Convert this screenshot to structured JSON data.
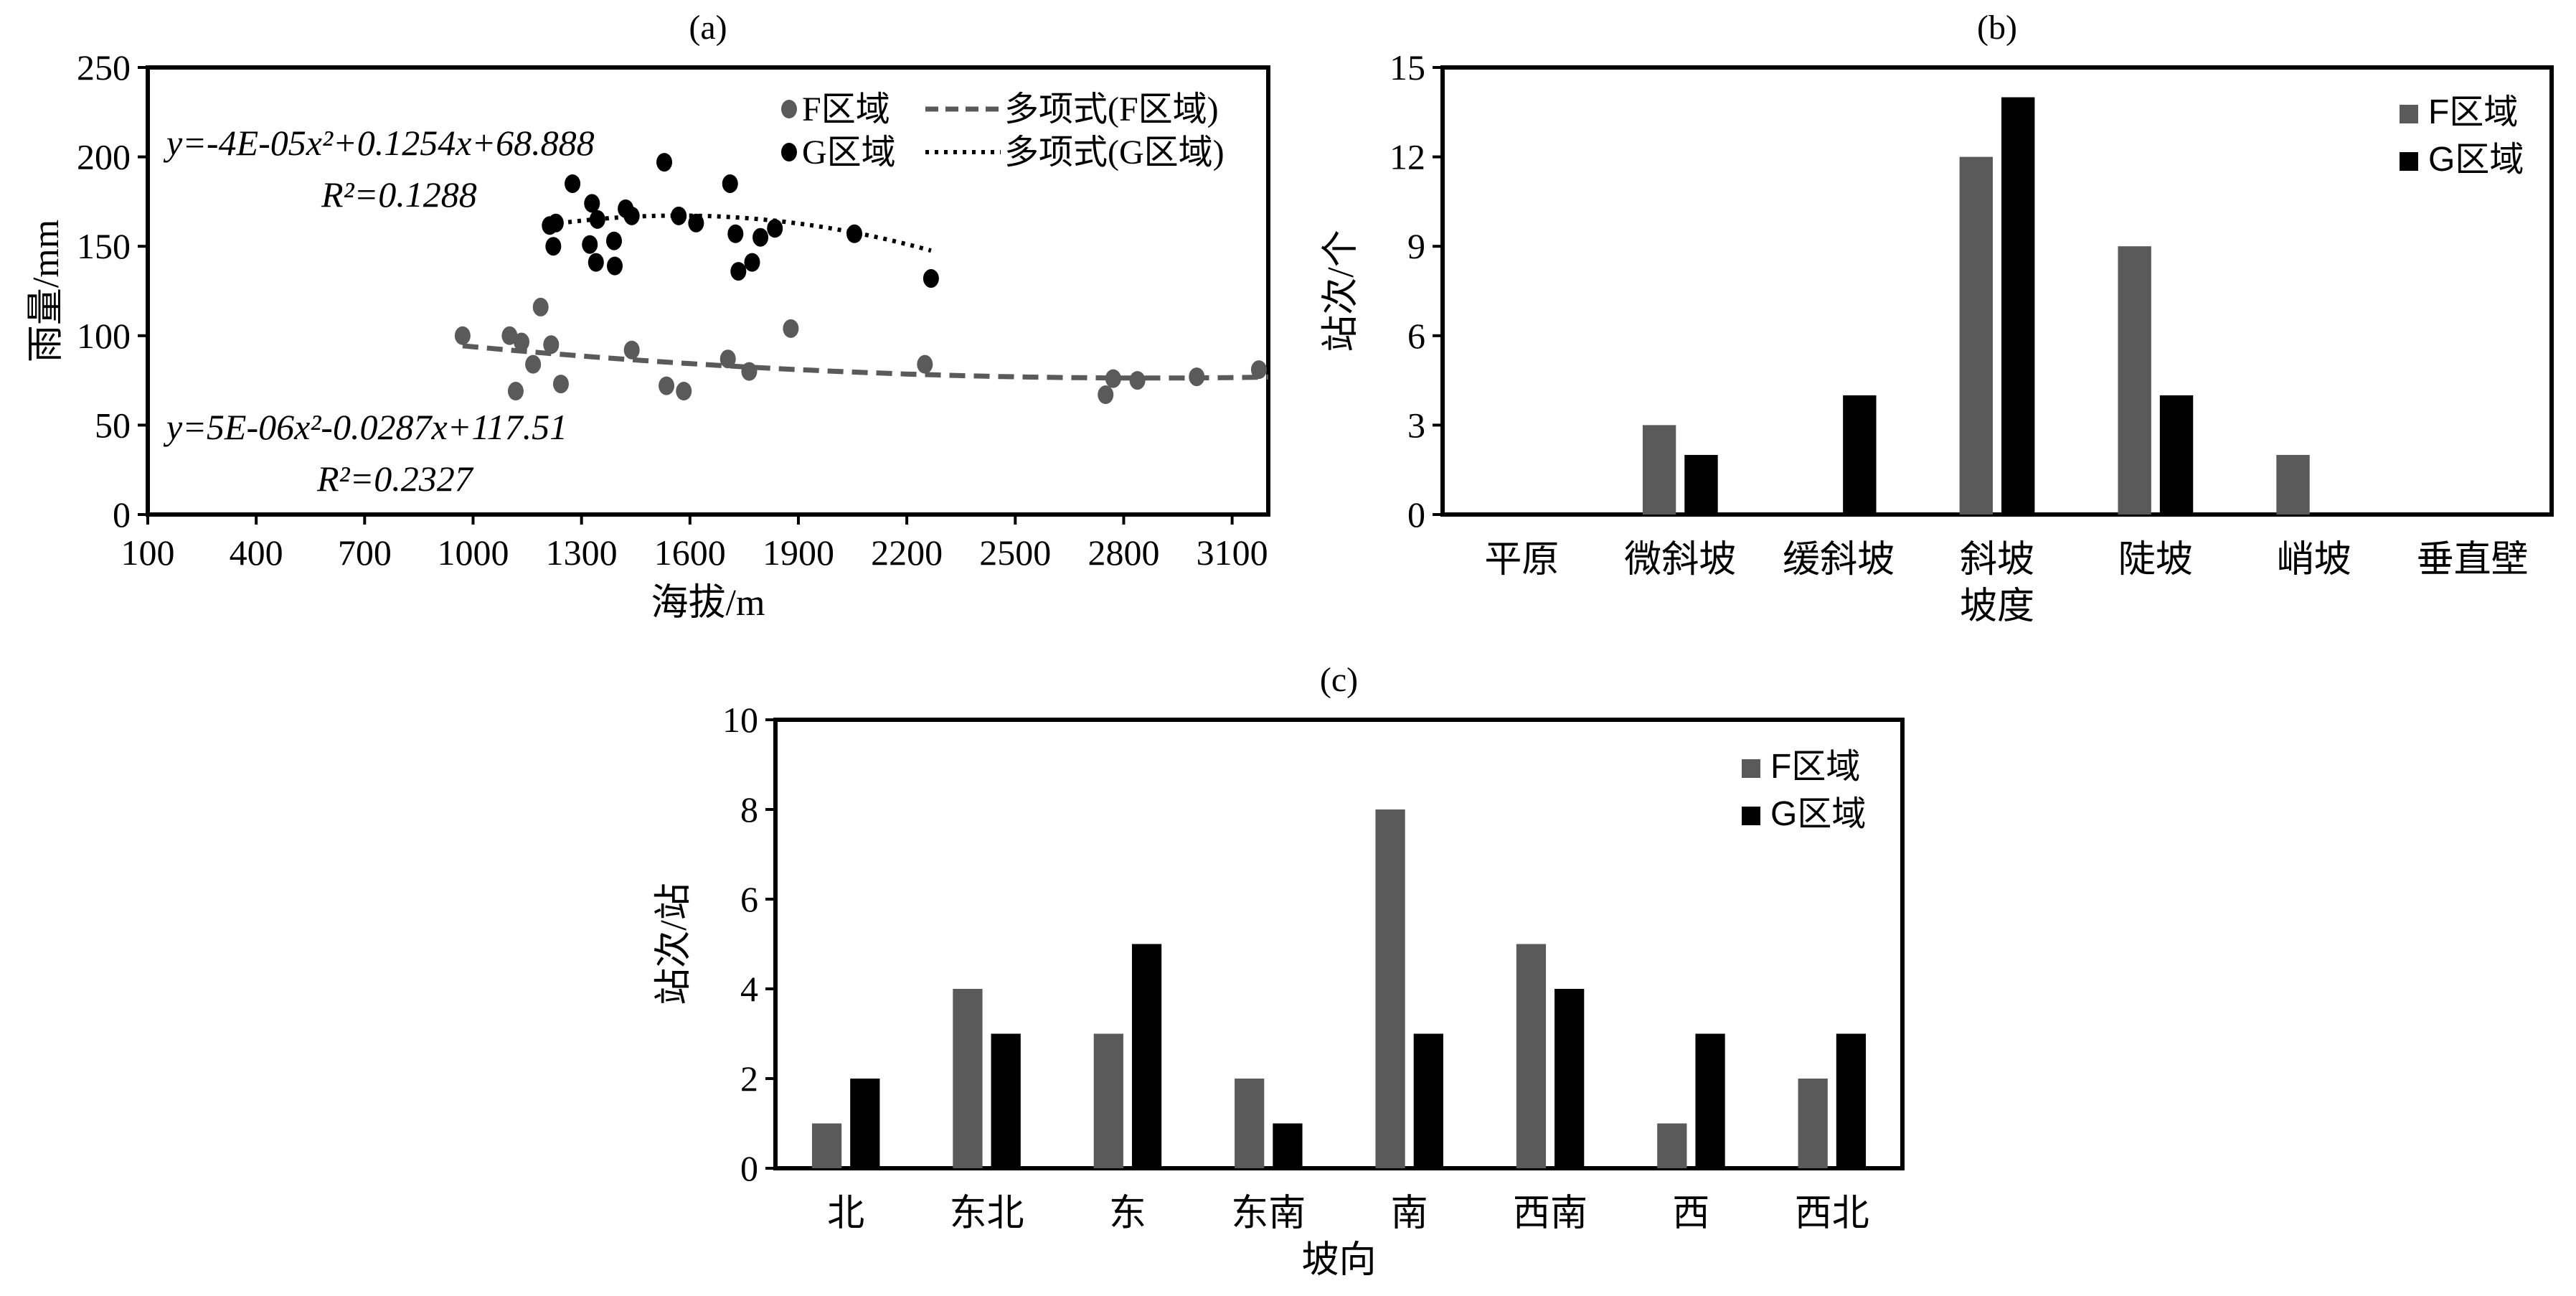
{
  "colors": {
    "F": "#5a5a5a",
    "G": "#000000"
  },
  "chart_data": [
    {
      "type": "scatter",
      "title": "(a)",
      "xlabel": "海拔/m",
      "ylabel": "雨量/mm",
      "xlim": [
        100,
        3200
      ],
      "ylim": [
        0,
        250
      ],
      "xticks": [
        100,
        400,
        700,
        1000,
        1300,
        1600,
        1900,
        2200,
        2500,
        2800,
        3100
      ],
      "yticks": [
        0,
        50,
        100,
        150,
        200,
        250
      ],
      "legend": {
        "position": "top-right",
        "entries": [
          "F区域",
          "G区域",
          "多项式(F区域)",
          "多项式(G区域)"
        ]
      },
      "series": [
        {
          "name": "F区域",
          "x": [
            971,
            1101,
            1134,
            1187,
            1216,
            1166,
            1118,
            1243,
            1439,
            1535,
            1583,
            1705,
            1764,
            1879,
            2250,
            2750,
            2771,
            2838,
            3002,
            3174
          ],
          "y": [
            100,
            100,
            96.5,
            116,
            95,
            84,
            69,
            73,
            92,
            72,
            69,
            87,
            80,
            104,
            84,
            67,
            76,
            75,
            77,
            81
          ],
          "fit": {
            "a": 5e-06,
            "b": -0.0287,
            "c": 117.51,
            "xrange": [
              971,
              3200
            ],
            "equation": "y=5E-06x²-0.0287x+117.51",
            "r2": "R²=0.2327"
          }
        },
        {
          "name": "G区域",
          "x": [
            1212,
            1229,
            1222,
            1275,
            1329,
            1344,
            1323,
            1340,
            1390,
            1392,
            1422,
            1439,
            1529,
            1569,
            1617,
            1711,
            1726,
            1734,
            1772,
            1795,
            1835,
            2055,
            2267
          ],
          "y": [
            161.6,
            163,
            150,
            185,
            174,
            165,
            151,
            141,
            153,
            139,
            171,
            167,
            197,
            167,
            163,
            185,
            157,
            136,
            141,
            155,
            160,
            157,
            132
          ],
          "fit": {
            "a": -4e-05,
            "b": 0.1254,
            "c": 68.888,
            "xrange": [
              1212,
              2267
            ],
            "equation": "y=-4E-05x²+0.1254x+68.888",
            "r2": "R²=0.1288"
          }
        }
      ]
    },
    {
      "type": "bar",
      "title": "(b)",
      "xlabel": "坡度",
      "ylabel": "站次/个",
      "ylim": [
        0,
        15
      ],
      "yticks": [
        0,
        3,
        6,
        9,
        12,
        15
      ],
      "categories": [
        "平原",
        "微斜坡",
        "缓斜坡",
        "斜坡",
        "陡坡",
        "峭坡",
        "垂直壁"
      ],
      "legend": {
        "position": "top-right"
      },
      "series": [
        {
          "name": "F区域",
          "values": [
            0,
            3,
            0,
            12,
            9,
            2,
            0
          ]
        },
        {
          "name": "G区域",
          "values": [
            0,
            2,
            4,
            14,
            4,
            0,
            0
          ]
        }
      ]
    },
    {
      "type": "bar",
      "title": "(c)",
      "xlabel": "坡向",
      "ylabel": "站次/站",
      "ylim": [
        0,
        10
      ],
      "yticks": [
        0,
        2,
        4,
        6,
        8,
        10
      ],
      "categories": [
        "北",
        "东北",
        "东",
        "东南",
        "南",
        "西南",
        "西",
        "西北"
      ],
      "legend": {
        "position": "top-right"
      },
      "series": [
        {
          "name": "F区域",
          "values": [
            1,
            4,
            3,
            2,
            8,
            5,
            1,
            2
          ]
        },
        {
          "name": "G区域",
          "values": [
            2,
            3,
            5,
            1,
            3,
            4,
            3,
            3
          ]
        }
      ]
    }
  ]
}
